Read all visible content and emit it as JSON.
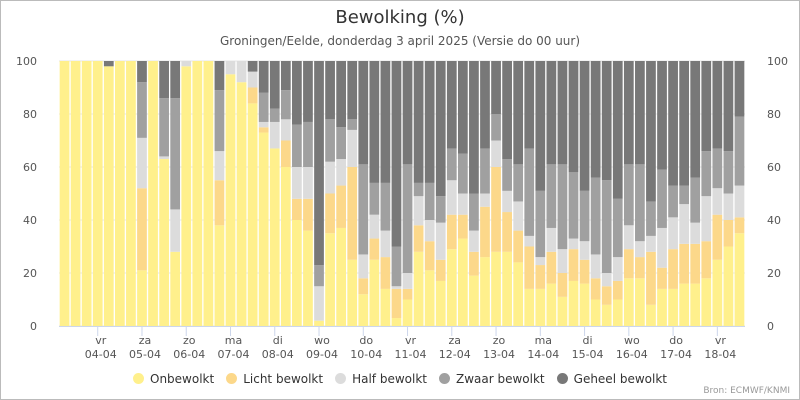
{
  "chart_data": {
    "type": "bar",
    "stacked": true,
    "title": "Bewolking (%)",
    "subtitle": "Groningen/Eelde, donderdag 3 april 2025 (Versie do 00 uur)",
    "source": "Bron: ECMWF/KNMI",
    "ylim": [
      0,
      100
    ],
    "yticks": [
      0,
      20,
      40,
      60,
      80,
      100
    ],
    "legend_position": "bottom",
    "x_ticks": [
      {
        "day": "vr",
        "date": "04-04",
        "bar_index": 3.5
      },
      {
        "day": "za",
        "date": "05-04",
        "bar_index": 7.5
      },
      {
        "day": "zo",
        "date": "06-04",
        "bar_index": 11.5
      },
      {
        "day": "ma",
        "date": "07-04",
        "bar_index": 15.5
      },
      {
        "day": "di",
        "date": "08-04",
        "bar_index": 19.5
      },
      {
        "day": "wo",
        "date": "09-04",
        "bar_index": 23.5
      },
      {
        "day": "do",
        "date": "10-04",
        "bar_index": 27.5
      },
      {
        "day": "vr",
        "date": "11-04",
        "bar_index": 31.5
      },
      {
        "day": "za",
        "date": "12-04",
        "bar_index": 35.5
      },
      {
        "day": "zo",
        "date": "13-04",
        "bar_index": 39.5
      },
      {
        "day": "ma",
        "date": "14-04",
        "bar_index": 43.5
      },
      {
        "day": "di",
        "date": "15-04",
        "bar_index": 47.5
      },
      {
        "day": "wo",
        "date": "16-04",
        "bar_index": 51.5
      },
      {
        "day": "do",
        "date": "17-04",
        "bar_index": 55.5
      },
      {
        "day": "vr",
        "date": "18-04",
        "bar_index": 59.5
      }
    ],
    "series": [
      {
        "name": "Onbewolkt",
        "color": "#fff08c",
        "values": [
          100,
          100,
          100,
          100,
          98,
          100,
          100,
          21,
          100,
          63,
          28,
          98,
          100,
          100,
          38,
          95,
          92,
          84,
          73,
          67,
          60,
          40,
          36,
          2,
          35,
          37,
          25,
          12,
          25,
          14,
          3,
          10,
          28,
          21,
          17,
          29,
          33,
          19,
          26,
          28,
          28,
          24,
          14,
          14,
          16,
          11,
          17,
          16,
          10,
          8,
          10,
          18,
          18,
          8,
          14,
          14,
          16,
          16,
          18,
          25,
          30,
          35
        ]
      },
      {
        "name": "Licht bewolkt",
        "color": "#fcd88a",
        "values": [
          0,
          0,
          0,
          0,
          0,
          0,
          0,
          31,
          0,
          0,
          0,
          0,
          0,
          0,
          17,
          0,
          0,
          6,
          2,
          0,
          10,
          8,
          12,
          0,
          15,
          16,
          35,
          6,
          8,
          12,
          11,
          4,
          10,
          11,
          8,
          13,
          9,
          9,
          19,
          32,
          15,
          12,
          16,
          9,
          12,
          9,
          12,
          9,
          8,
          7,
          7,
          11,
          8,
          20,
          8,
          15,
          15,
          15,
          14,
          17,
          10,
          6
        ]
      },
      {
        "name": "Half bewolkt",
        "color": "#dcdcdc",
        "values": [
          0,
          0,
          0,
          0,
          0,
          0,
          0,
          19,
          0,
          1,
          16,
          2,
          0,
          0,
          11,
          5,
          8,
          6,
          2,
          10,
          8,
          12,
          12,
          13,
          12,
          10,
          14,
          9,
          9,
          10,
          1,
          6,
          11,
          8,
          14,
          13,
          8,
          8,
          5,
          10,
          8,
          11,
          4,
          3,
          9,
          9,
          4,
          7,
          9,
          5,
          9,
          9,
          6,
          6,
          15,
          12,
          15,
          8,
          17,
          10,
          10,
          12
        ]
      },
      {
        "name": "Zwaar bewolkt",
        "color": "#a0a0a0",
        "values": [
          0,
          0,
          0,
          0,
          0,
          0,
          0,
          21,
          0,
          22,
          42,
          0,
          0,
          0,
          23,
          0,
          0,
          0,
          11,
          5,
          11,
          16,
          17,
          8,
          16,
          12,
          4,
          34,
          12,
          18,
          15,
          41,
          5,
          14,
          10,
          12,
          15,
          14,
          17,
          10,
          12,
          14,
          33,
          25,
          24,
          32,
          25,
          19,
          29,
          35,
          22,
          23,
          29,
          13,
          22,
          12,
          7,
          17,
          17,
          15,
          16,
          26
        ]
      },
      {
        "name": "Geheel bewolkt",
        "color": "#787878",
        "values": [
          0,
          0,
          0,
          0,
          2,
          0,
          0,
          8,
          0,
          14,
          14,
          0,
          0,
          0,
          11,
          0,
          0,
          4,
          12,
          18,
          11,
          24,
          23,
          77,
          22,
          25,
          22,
          39,
          46,
          46,
          70,
          39,
          46,
          46,
          51,
          33,
          35,
          50,
          33,
          20,
          37,
          39,
          33,
          49,
          39,
          39,
          42,
          49,
          44,
          45,
          52,
          39,
          39,
          53,
          41,
          47,
          47,
          44,
          34,
          33,
          34,
          21
        ]
      }
    ]
  }
}
